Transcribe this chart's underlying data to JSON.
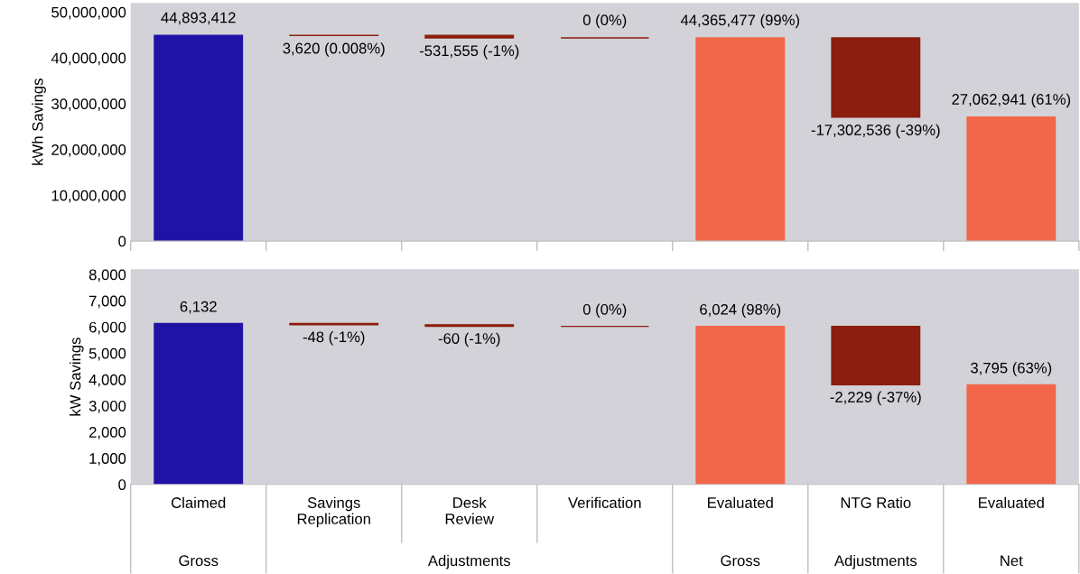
{
  "chart_data": [
    {
      "type": "bar",
      "ylabel": "kWh Savings",
      "categories": [
        null,
        null,
        null,
        null,
        null,
        null,
        null
      ],
      "values": [
        44893412,
        3620,
        -531555,
        0,
        44365477,
        -17302536,
        27062941
      ],
      "base": [
        0,
        44893412,
        44897032,
        44365477,
        0,
        44365477,
        0
      ],
      "colors": [
        "#2112a6",
        "#8b1e0e",
        "#8b1e0e",
        "#8b1e0e",
        "#f2674a",
        "#8b1e0e",
        "#f2674a"
      ],
      "value_labels": [
        "44,893,412",
        "3,620 (0.008%)",
        "-531,555 (-1%)",
        "0 (0%)",
        "44,365,477 (99%)",
        "-17,302,536 (-39%)",
        "27,062,941 (61%)"
      ],
      "ylim": [
        0,
        52000000
      ],
      "yticks": [
        {
          "value": 0,
          "label": "0"
        },
        {
          "value": 10000000,
          "label": "10,000,000"
        },
        {
          "value": 20000000,
          "label": "20,000,000"
        },
        {
          "value": 30000000,
          "label": "30,000,000"
        },
        {
          "value": 40000000,
          "label": "40,000,000"
        },
        {
          "value": 50000000,
          "label": "50,000,000"
        }
      ],
      "tick_labels": "y",
      "grid": false,
      "legend": false
    },
    {
      "type": "bar",
      "ylabel": "kW Savings",
      "categories": [
        "Claimed",
        "Savings\nReplication",
        "Desk\nReview",
        "Verification",
        "Evaluated",
        "NTG Ratio",
        "Evaluated"
      ],
      "values": [
        6132,
        -48,
        -60,
        0,
        6024,
        -2229,
        3795
      ],
      "base": [
        0,
        6132,
        6084,
        6024,
        0,
        6024,
        0
      ],
      "colors": [
        "#2112a6",
        "#8b1e0e",
        "#8b1e0e",
        "#8b1e0e",
        "#f2674a",
        "#8b1e0e",
        "#f2674a"
      ],
      "value_labels": [
        "6,132",
        "-48 (-1%)",
        "-60 (-1%)",
        "0 (0%)",
        "6,024 (98%)",
        "-2,229 (-37%)",
        "3,795 (63%)"
      ],
      "ylim": [
        0,
        8200
      ],
      "yticks": [
        {
          "value": 0,
          "label": "0"
        },
        {
          "value": 1000,
          "label": "1,000"
        },
        {
          "value": 2000,
          "label": "2,000"
        },
        {
          "value": 3000,
          "label": "3,000"
        },
        {
          "value": 4000,
          "label": "4,000"
        },
        {
          "value": 5000,
          "label": "5,000"
        },
        {
          "value": 6000,
          "label": "6,000"
        },
        {
          "value": 7000,
          "label": "7,000"
        },
        {
          "value": 8000,
          "label": "8,000"
        }
      ],
      "grid": false,
      "legend": false,
      "annotations": [
        "Gross",
        "Adjustments",
        "Gross",
        "Adjustments",
        "Net"
      ]
    }
  ]
}
